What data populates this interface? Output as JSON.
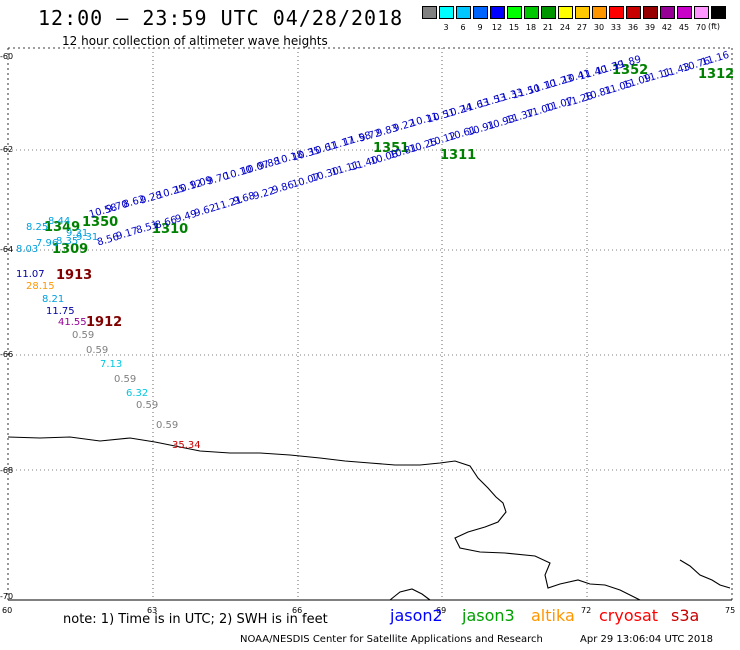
{
  "title": "12:00 – 23:59 UTC 04/28/2018",
  "subtitle": "12 hour collection of altimeter wave heights",
  "scale": {
    "unit": "(ft)",
    "swatches": [
      {
        "color": "#808080",
        "label": ""
      },
      {
        "color": "#00ffff",
        "label": "3"
      },
      {
        "color": "#00c8ff",
        "label": "6"
      },
      {
        "color": "#0064ff",
        "label": "9"
      },
      {
        "color": "#0000ff",
        "label": "12"
      },
      {
        "color": "#00ff00",
        "label": "15"
      },
      {
        "color": "#00c800",
        "label": "18"
      },
      {
        "color": "#009600",
        "label": "21"
      },
      {
        "color": "#ffff00",
        "label": "24"
      },
      {
        "color": "#ffc800",
        "label": "27"
      },
      {
        "color": "#ff9600",
        "label": "30"
      },
      {
        "color": "#ff0000",
        "label": "33"
      },
      {
        "color": "#c80000",
        "label": "36"
      },
      {
        "color": "#960000",
        "label": "39"
      },
      {
        "color": "#960096",
        "label": "42"
      },
      {
        "color": "#c800c8",
        "label": "45"
      },
      {
        "color": "#ff96ff",
        "label": "70"
      },
      {
        "color": "#000000",
        "label": ""
      }
    ]
  },
  "axes": {
    "y_labels": [
      "-60",
      "-62",
      "-64",
      "-66",
      "-68",
      "-70"
    ],
    "x_labels": [
      "60",
      "63",
      "66",
      "69",
      "72",
      "75"
    ]
  },
  "tracks": [
    {
      "label": "1352",
      "color": "#008000"
    },
    {
      "label": "1312",
      "color": "#008000"
    },
    {
      "label": "1351",
      "color": "#008000"
    },
    {
      "label": "1311",
      "color": "#008000"
    },
    {
      "label": "1350",
      "color": "#008000"
    },
    {
      "label": "1349",
      "color": "#008000"
    },
    {
      "label": "1310",
      "color": "#008000"
    },
    {
      "label": "1309",
      "color": "#008000"
    },
    {
      "label": "1913",
      "color": "#800000"
    },
    {
      "label": "1912",
      "color": "#800000"
    }
  ],
  "upper_track_values": [
    "10.58",
    "9.70",
    "8.62",
    "9.28",
    "10.25",
    "10.12",
    "9.09",
    "9.70",
    "10.10",
    "10.07",
    "9.88",
    "10.18",
    "10.35",
    "10.61",
    "11.17",
    "11.58",
    "9.72",
    "9.83",
    "9.22",
    "10.11",
    "10.51",
    "10.24",
    "11.63",
    "11.53",
    "11.33",
    "11.50",
    "11.10",
    "11.23",
    "10.41",
    "11.40",
    "11.39",
    "11.89"
  ],
  "lower_track_values": [
    "8.56",
    "9.17",
    "8.51",
    "8.66",
    "9.49",
    "9.62",
    "11.21",
    "9.68",
    "9.22",
    "9.86",
    "10.07",
    "10.30",
    "11.11",
    "11.40",
    "10.08",
    "10.81",
    "10.25",
    "10.12",
    "10.61",
    "10.91",
    "10.93",
    "11.37",
    "11.00",
    "11.07",
    "11.28",
    "10.81",
    "11.05",
    "11.09",
    "11.11",
    "11.43",
    "10.76",
    "11.16"
  ],
  "left_cluster": [
    "8.25",
    "8.44",
    "9.31",
    "7.96",
    "8.03",
    "8.35",
    "9.31"
  ],
  "descending_track": [
    {
      "v": "11.07",
      "c": "#0000a0"
    },
    {
      "v": "28.15",
      "c": "#ff9600"
    },
    {
      "v": "8.21",
      "c": "#00a0e0"
    },
    {
      "v": "11.75",
      "c": "#0000a0"
    },
    {
      "v": "41.55",
      "c": "#960096"
    },
    {
      "v": "0.59",
      "c": "#808080"
    },
    {
      "v": "0.59",
      "c": "#808080"
    },
    {
      "v": "7.13",
      "c": "#00c8e0"
    },
    {
      "v": "0.59",
      "c": "#808080"
    },
    {
      "v": "6.32",
      "c": "#00c8e0"
    },
    {
      "v": "0.59",
      "c": "#808080"
    },
    {
      "v": "0.59",
      "c": "#808080"
    },
    {
      "v": "35.34",
      "c": "#c80000"
    }
  ],
  "note": "note:  1) Time is in UTC;  2) SWH is in feet",
  "satellites": [
    {
      "name": "jason2",
      "color": "#0000ff"
    },
    {
      "name": "jason3",
      "color": "#00a000"
    },
    {
      "name": "altika",
      "color": "#ff9600"
    },
    {
      "name": "cryosat",
      "color": "#ff0000"
    },
    {
      "name": "s3a",
      "color": "#c80000"
    }
  ],
  "credit": "NOAA/NESDIS Center for Satellite Applications and Research",
  "timestamp": "Apr 29 13:06:04 UTC 2018"
}
